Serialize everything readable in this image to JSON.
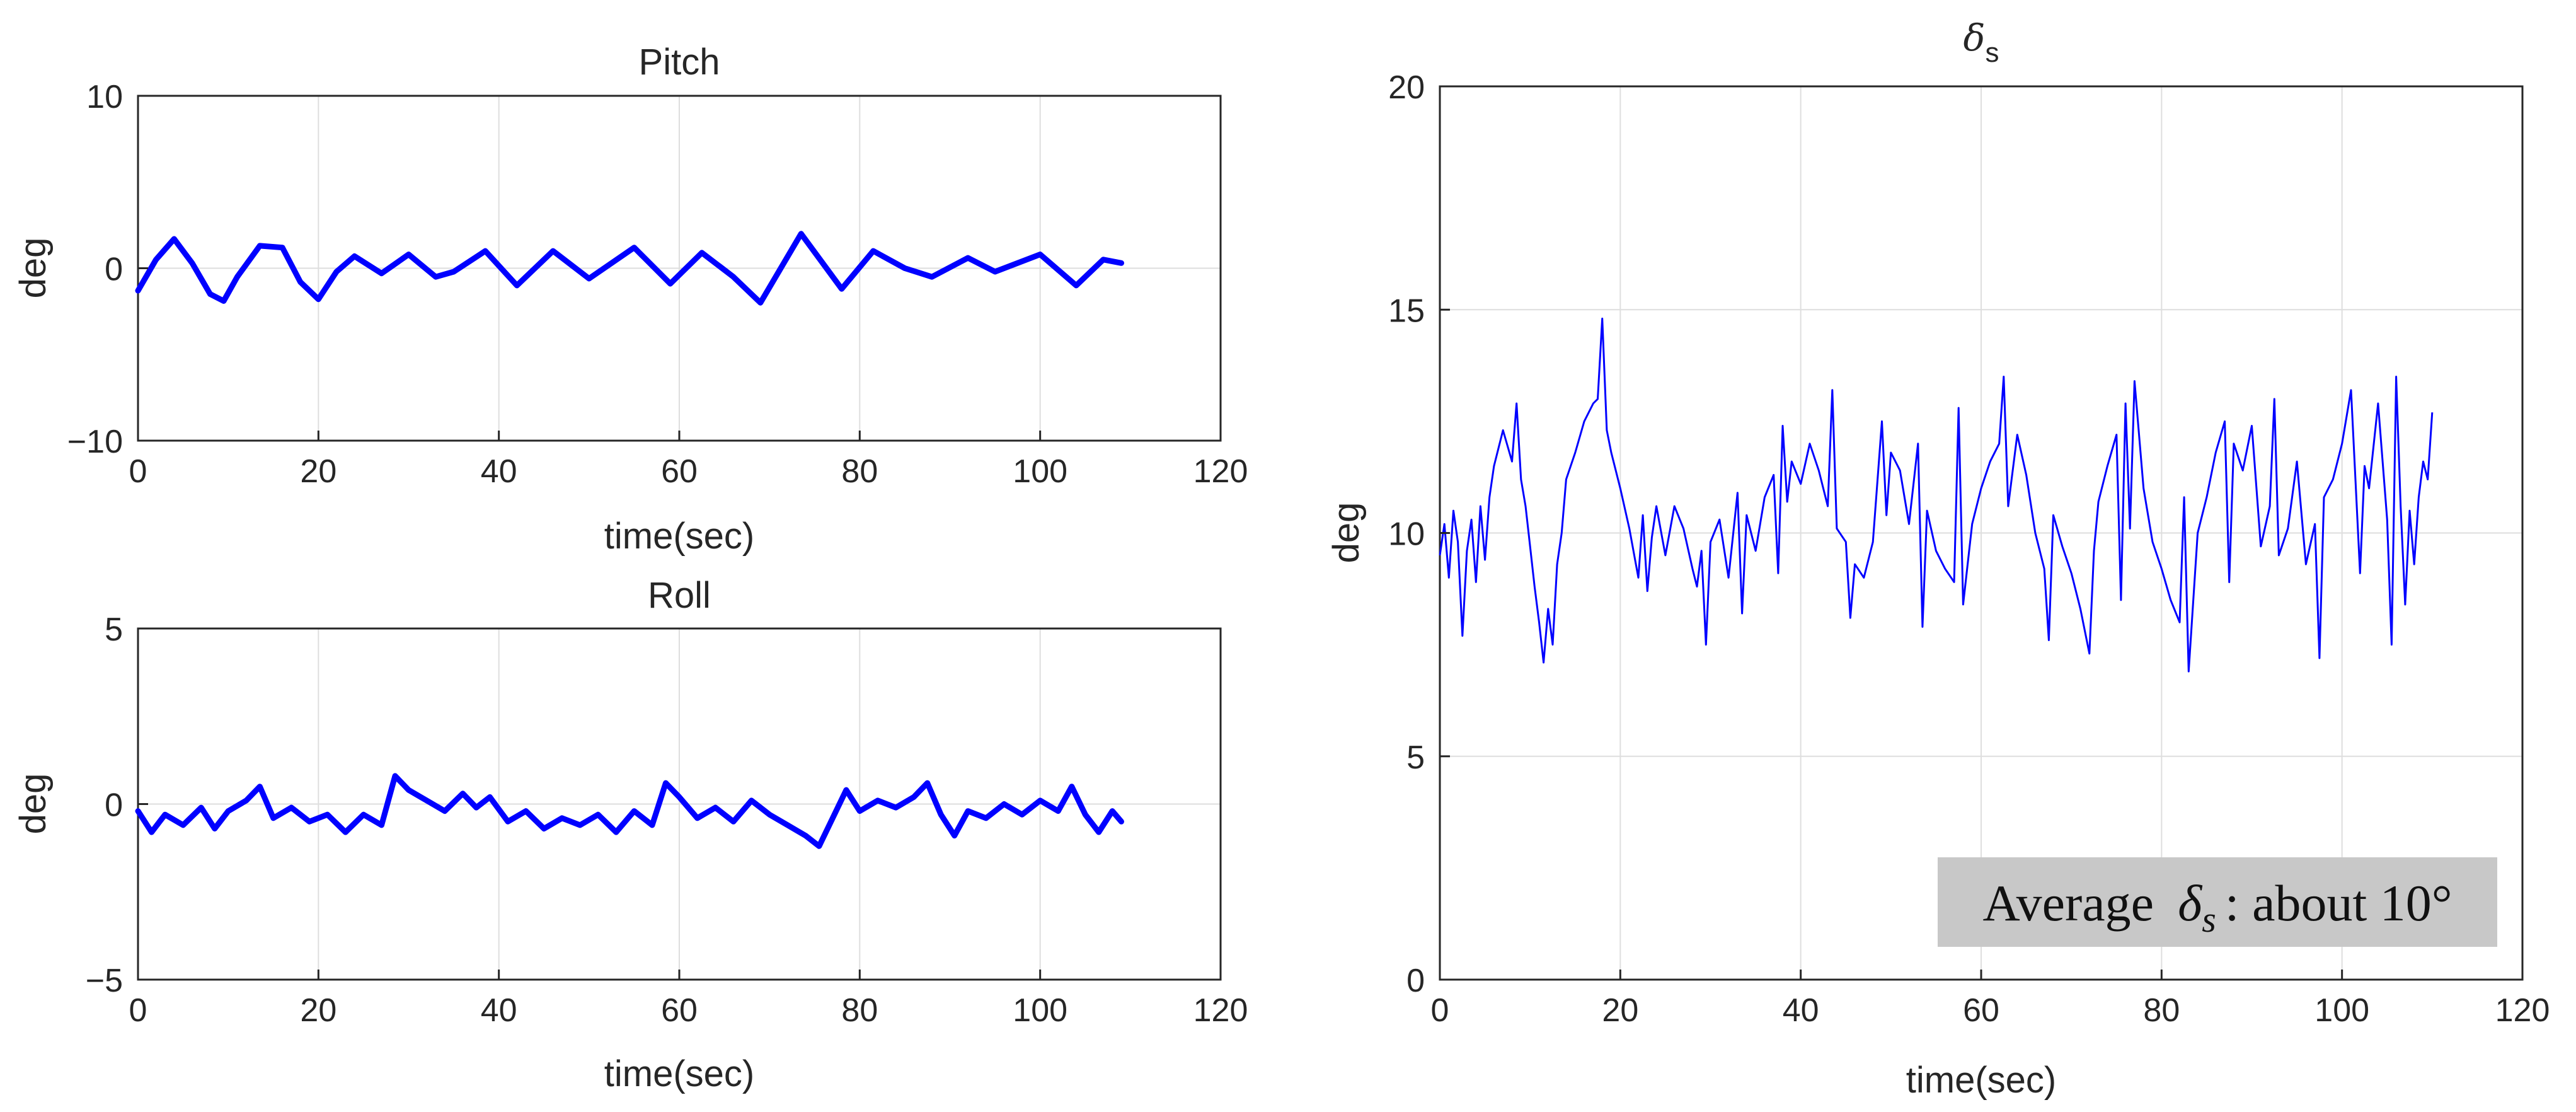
{
  "chart_data": [
    {
      "type": "line",
      "title": "Pitch",
      "xlabel": "time(sec)",
      "ylabel": "deg",
      "xlim": [
        0,
        120
      ],
      "ylim": [
        -10,
        10
      ],
      "xticks": [
        0,
        20,
        40,
        60,
        80,
        100,
        120
      ],
      "yticks": [
        -10,
        0,
        10
      ],
      "ytick_labels": [
        "−10",
        "0",
        "10"
      ],
      "grid": true,
      "line_color": "#0000FF",
      "series": [
        {
          "x": [
            0,
            2,
            4,
            6,
            8,
            9.5,
            11,
            13.5,
            16,
            18,
            20,
            22,
            24,
            27,
            30,
            33,
            35,
            38.5,
            42,
            46,
            50,
            55,
            59,
            62.5,
            66,
            69,
            73.5,
            78,
            81.5,
            85,
            88,
            92,
            95,
            100,
            104,
            107,
            109
          ],
          "y": [
            -1.3,
            0.5,
            1.7,
            0.3,
            -1.5,
            -1.9,
            -0.5,
            1.3,
            1.2,
            -0.8,
            -1.8,
            -0.2,
            0.7,
            -0.3,
            0.8,
            -0.5,
            -0.2,
            1.0,
            -1.0,
            1.0,
            -0.6,
            1.2,
            -0.9,
            0.9,
            -0.5,
            -2.0,
            2.0,
            -1.2,
            1.0,
            0.0,
            -0.5,
            0.6,
            -0.2,
            0.8,
            -1.0,
            0.5,
            0.3
          ]
        }
      ]
    },
    {
      "type": "line",
      "title": "Roll",
      "xlabel": "time(sec)",
      "ylabel": "deg",
      "xlim": [
        0,
        120
      ],
      "ylim": [
        -5,
        5
      ],
      "xticks": [
        0,
        20,
        40,
        60,
        80,
        100,
        120
      ],
      "yticks": [
        -5,
        0,
        5
      ],
      "ytick_labels": [
        "−5",
        "0",
        "5"
      ],
      "grid": true,
      "line_color": "#0000FF",
      "series": [
        {
          "x": [
            0,
            1.5,
            3,
            5,
            7,
            8.5,
            10,
            12,
            13.5,
            15,
            17,
            19,
            21,
            23,
            25,
            27,
            28.5,
            30,
            32,
            34,
            36,
            37.5,
            39,
            41,
            43,
            45,
            47,
            49,
            51,
            53,
            55,
            57,
            58.5,
            60,
            62,
            64,
            66,
            68,
            70,
            72,
            74,
            75.5,
            77,
            78.5,
            80,
            82,
            84,
            86,
            87.5,
            89,
            90.5,
            92,
            94,
            96,
            98,
            100,
            102,
            103.5,
            105,
            106.5,
            108,
            109
          ],
          "y": [
            -0.2,
            -0.8,
            -0.3,
            -0.6,
            -0.1,
            -0.7,
            -0.2,
            0.1,
            0.5,
            -0.4,
            -0.1,
            -0.5,
            -0.3,
            -0.8,
            -0.3,
            -0.6,
            0.8,
            0.4,
            0.1,
            -0.2,
            0.3,
            -0.1,
            0.2,
            -0.5,
            -0.2,
            -0.7,
            -0.4,
            -0.6,
            -0.3,
            -0.8,
            -0.2,
            -0.6,
            0.6,
            0.2,
            -0.4,
            -0.1,
            -0.5,
            0.1,
            -0.3,
            -0.6,
            -0.9,
            -1.2,
            -0.4,
            0.4,
            -0.2,
            0.1,
            -0.1,
            0.2,
            0.6,
            -0.3,
            -0.9,
            -0.2,
            -0.4,
            0.0,
            -0.3,
            0.1,
            -0.2,
            0.5,
            -0.3,
            -0.8,
            -0.2,
            -0.5
          ]
        }
      ]
    },
    {
      "type": "line",
      "title": "δs",
      "title_symbol": "δ",
      "title_subscript": "s",
      "xlabel": "time(sec)",
      "ylabel": "deg",
      "xlim": [
        0,
        120
      ],
      "ylim": [
        0,
        20
      ],
      "xticks": [
        0,
        20,
        40,
        60,
        80,
        100,
        120
      ],
      "yticks": [
        0,
        5,
        10,
        15,
        20
      ],
      "grid": true,
      "line_color": "#0000FF",
      "annotation": {
        "prefix": "Average",
        "symbol": "δ",
        "subscript": "s",
        "suffix": ": about 10°",
        "background": "#C8C8C8"
      },
      "series": [
        {
          "x": [
            0,
            0.5,
            1,
            1.5,
            2,
            2.5,
            3,
            3.5,
            4,
            4.5,
            5,
            5.5,
            6,
            7,
            8,
            8.5,
            9,
            9.5,
            10,
            10.5,
            11,
            11.5,
            12,
            12.5,
            13,
            13.5,
            14,
            15,
            16,
            17,
            17.5,
            18,
            18.5,
            19,
            20,
            21,
            22,
            22.5,
            23,
            23.5,
            24,
            25,
            26,
            27,
            28,
            28.5,
            29,
            29.5,
            30,
            31,
            32,
            33,
            33.5,
            34,
            35,
            36,
            37,
            37.5,
            38,
            38.5,
            39,
            40,
            41,
            42,
            43,
            43.5,
            44,
            45,
            45.5,
            46,
            47,
            48,
            49,
            49.5,
            50,
            51,
            52,
            53,
            53.5,
            54,
            55,
            56,
            57,
            57.5,
            58,
            59,
            60,
            61,
            62,
            62.5,
            63,
            64,
            65,
            66,
            67,
            67.5,
            68,
            69,
            70,
            71,
            72,
            72.5,
            73,
            74,
            75,
            75.5,
            76,
            76.5,
            77,
            78,
            79,
            80,
            81,
            82,
            82.5,
            83,
            84,
            85,
            86,
            87,
            87.5,
            88,
            89,
            90,
            91,
            92,
            92.5,
            93,
            94,
            95,
            96,
            97,
            97.5,
            98,
            99,
            100,
            101,
            102,
            102.5,
            103,
            104,
            105,
            105.5,
            106,
            106.5,
            107,
            107.5,
            108,
            108.5,
            109,
            109.5,
            110
          ],
          "y": [
            9.5,
            10.2,
            9.0,
            10.5,
            9.8,
            7.7,
            9.6,
            10.3,
            8.9,
            10.6,
            9.4,
            10.8,
            11.5,
            12.3,
            11.6,
            12.9,
            11.2,
            10.6,
            9.7,
            8.8,
            8.0,
            7.1,
            8.3,
            7.5,
            9.3,
            10.0,
            11.2,
            11.8,
            12.5,
            12.9,
            13.0,
            14.8,
            12.3,
            11.8,
            11.0,
            10.1,
            9.0,
            10.4,
            8.7,
            9.9,
            10.6,
            9.5,
            10.6,
            10.1,
            9.2,
            8.8,
            9.6,
            7.5,
            9.8,
            10.3,
            9.0,
            10.9,
            8.2,
            10.4,
            9.6,
            10.8,
            11.3,
            9.1,
            12.4,
            10.7,
            11.6,
            11.1,
            12.0,
            11.4,
            10.6,
            13.2,
            10.1,
            9.8,
            8.1,
            9.3,
            9.0,
            9.8,
            12.5,
            10.4,
            11.8,
            11.4,
            10.2,
            12.0,
            7.9,
            10.5,
            9.6,
            9.2,
            8.9,
            12.8,
            8.4,
            10.2,
            11.0,
            11.6,
            12.0,
            13.5,
            10.6,
            12.2,
            11.3,
            10.0,
            9.2,
            7.6,
            10.4,
            9.7,
            9.1,
            8.3,
            7.3,
            9.6,
            10.7,
            11.5,
            12.2,
            8.5,
            12.9,
            10.1,
            13.4,
            11.0,
            9.8,
            9.2,
            8.5,
            8.0,
            10.8,
            6.9,
            10.0,
            10.8,
            11.8,
            12.5,
            8.9,
            12.0,
            11.4,
            12.4,
            9.7,
            10.6,
            13.0,
            9.5,
            10.1,
            11.6,
            9.3,
            10.2,
            7.2,
            10.8,
            11.2,
            12.0,
            13.2,
            9.1,
            11.5,
            11.0,
            12.9,
            10.3,
            7.5,
            13.5,
            10.6,
            8.4,
            10.5,
            9.3,
            10.8,
            11.6,
            11.2,
            12.7
          ]
        }
      ]
    }
  ]
}
